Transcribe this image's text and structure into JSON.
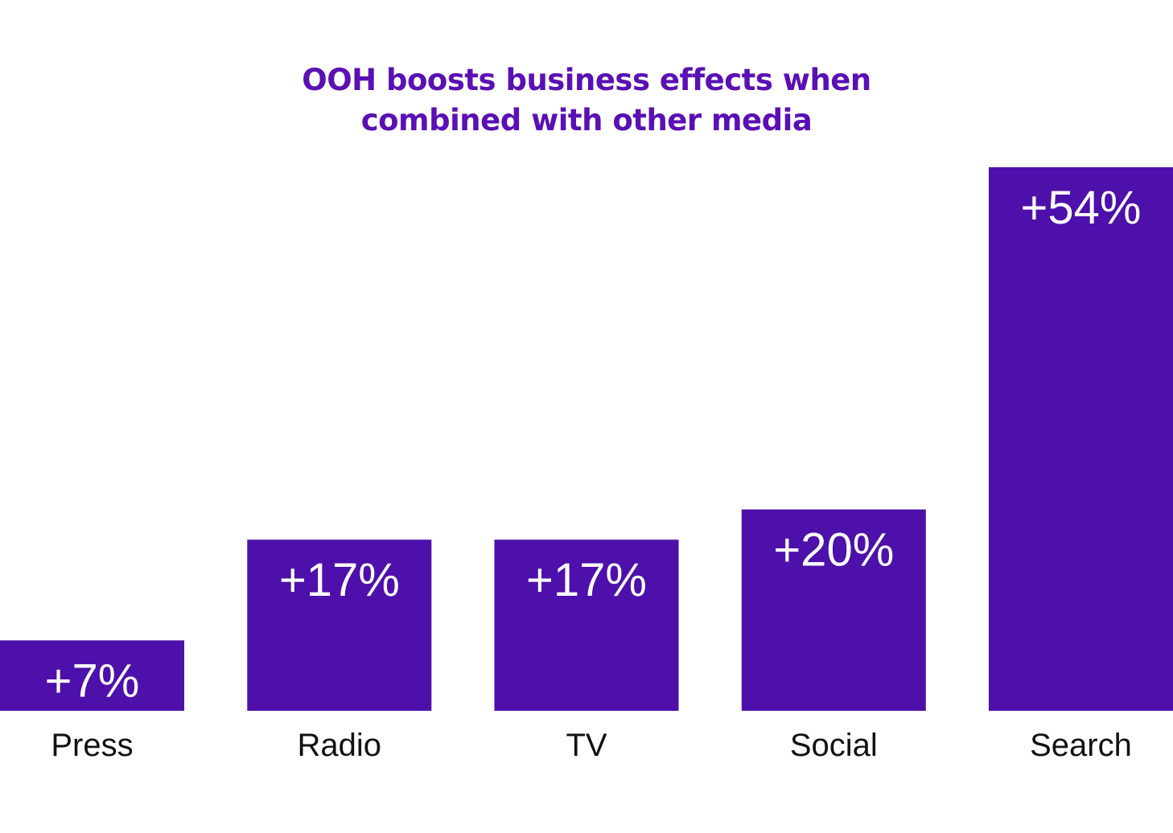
{
  "chart_data": {
    "type": "bar",
    "title": [
      "OOH boosts business effects when",
      "combined with other media"
    ],
    "categories": [
      "Press",
      "Radio",
      "TV",
      "Social",
      "Search"
    ],
    "values": [
      7,
      17,
      17,
      20,
      54
    ],
    "value_labels": [
      "+7%",
      "+17%",
      "+17%",
      "+20%",
      "+54%"
    ],
    "xlabel": "",
    "ylabel": "",
    "ylim": [
      0,
      54
    ],
    "grid": false,
    "legend": "none"
  },
  "colors": {
    "bar": "#4d10aa",
    "title": "#5a10b4",
    "value_label": "#ffffff",
    "category_label": "#111111",
    "background": "#ffffff"
  }
}
